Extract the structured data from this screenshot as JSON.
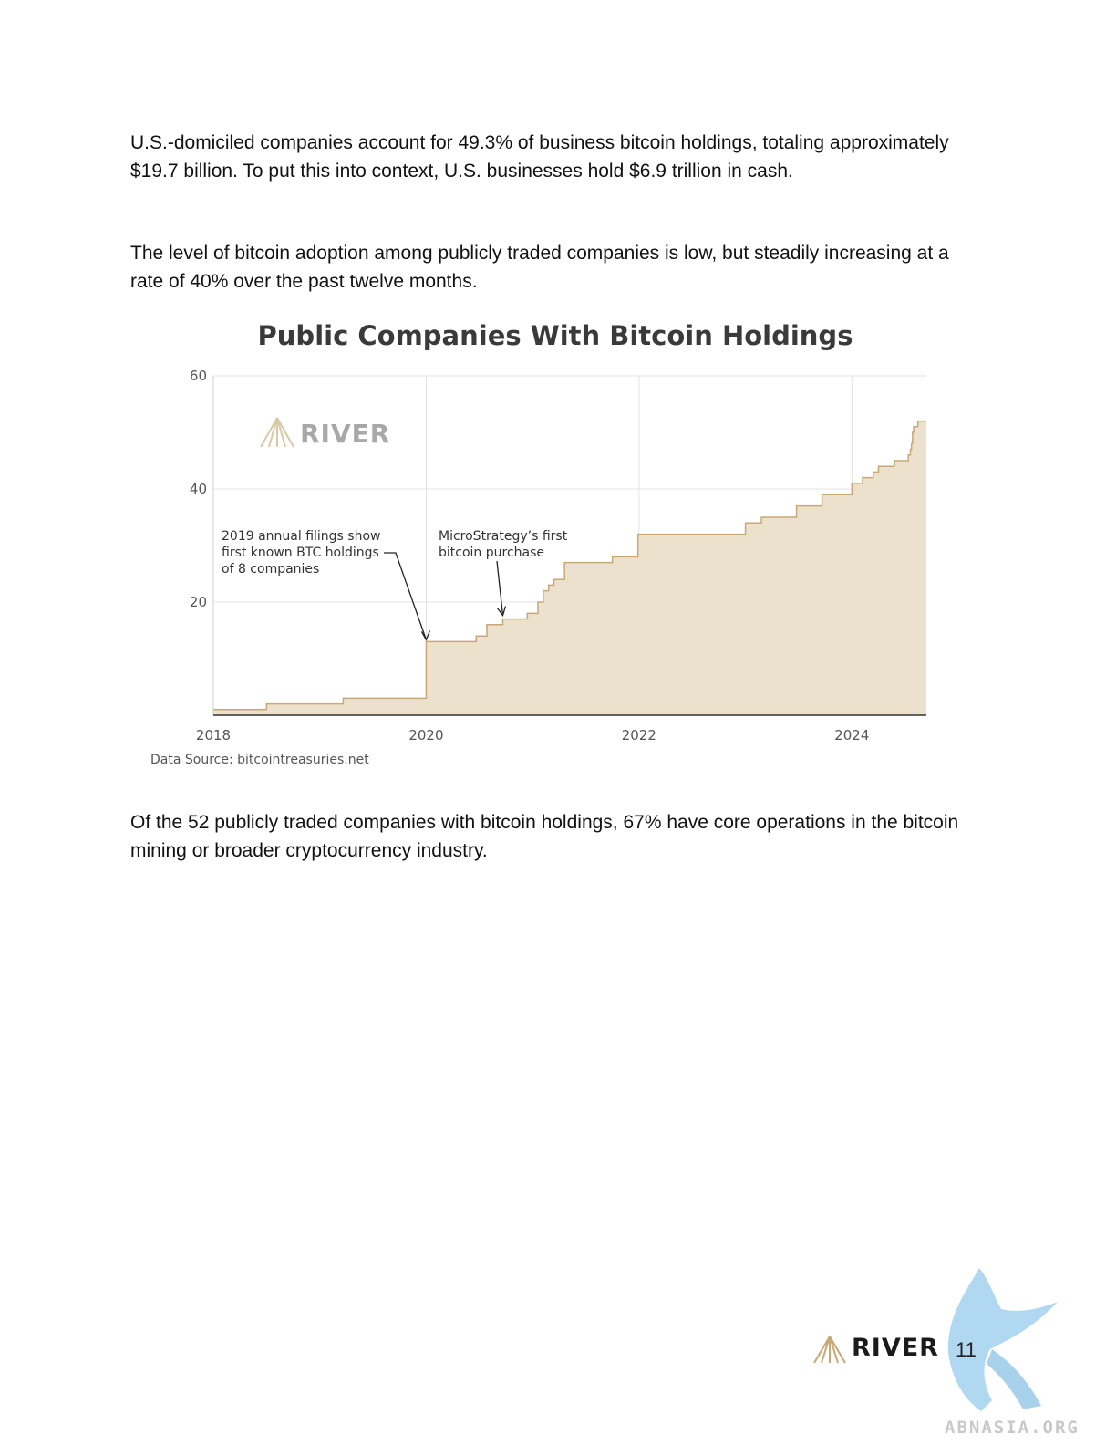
{
  "paragraphs": {
    "p1": "U.S.-domiciled companies account for 49.3% of business bitcoin holdings, totaling approximately $19.7 billion. To put this into context, U.S. businesses hold $6.9 trillion in cash.",
    "p2": "The level of bitcoin adoption among publicly traded companies is low, but steadily increasing at a rate of 40% over the past twelve months.",
    "p3": "Of the 52 publicly traded companies with bitcoin holdings, 67% have core operations in the bitcoin mining or broader cryptocurrency industry."
  },
  "chart_data": {
    "type": "area",
    "title": "Public Companies With Bitcoin Holdings",
    "xlabel": "",
    "ylabel": "",
    "xlim": [
      2018.0,
      2024.7
    ],
    "ylim": [
      0,
      60
    ],
    "x_ticks": [
      "2018",
      "2020",
      "2022",
      "2024"
    ],
    "y_ticks": [
      "20",
      "40",
      "60"
    ],
    "grid": true,
    "watermark_logo": "RIVER",
    "source": "Data Source: bitcointreasuries.net",
    "colors": {
      "fill": "#ebe1cc",
      "line": "#c9a877",
      "grid": "#e3e3e3",
      "axis": "#333333"
    },
    "annotations": [
      {
        "lines": [
          "2019 annual filings show",
          "first known BTC holdings",
          "of 8 companies"
        ],
        "x": 2020.0,
        "y": 13
      },
      {
        "lines": [
          "MicroStrategy’s first",
          "bitcoin purchase"
        ],
        "x": 2020.72,
        "y": 17
      }
    ],
    "series": [
      {
        "x": [
          2018.0,
          2018.25,
          2018.5,
          2019.22,
          2019.99,
          2020.0,
          2020.25,
          2020.47,
          2020.57,
          2020.72,
          2020.95,
          2021.05,
          2021.1,
          2021.15,
          2021.2,
          2021.22,
          2021.3,
          2021.45,
          2021.6,
          2021.75,
          2021.83,
          2021.99,
          2022.5,
          2022.98,
          2023.0,
          2023.1,
          2023.15,
          2023.3,
          2023.48,
          2023.6,
          2023.72,
          2023.95,
          2024.0,
          2024.1,
          2024.2,
          2024.25,
          2024.3,
          2024.4,
          2024.5,
          2024.53,
          2024.55,
          2024.56,
          2024.57,
          2024.58,
          2024.62,
          2024.65,
          2024.7
        ],
        "y": [
          1,
          1,
          2,
          3,
          3,
          13,
          13,
          14,
          16,
          17,
          18,
          20,
          22,
          23,
          24,
          24,
          27,
          27,
          27,
          28,
          28,
          32,
          32,
          32,
          34,
          34,
          35,
          35,
          37,
          37,
          39,
          39,
          41,
          42,
          43,
          44,
          44,
          45,
          45,
          46,
          47,
          48,
          50,
          51,
          52,
          52,
          52
        ]
      }
    ]
  },
  "footer": {
    "logo_text": "RIVER",
    "page_number": "11",
    "watermark_text": "ABNASIA.ORG"
  }
}
